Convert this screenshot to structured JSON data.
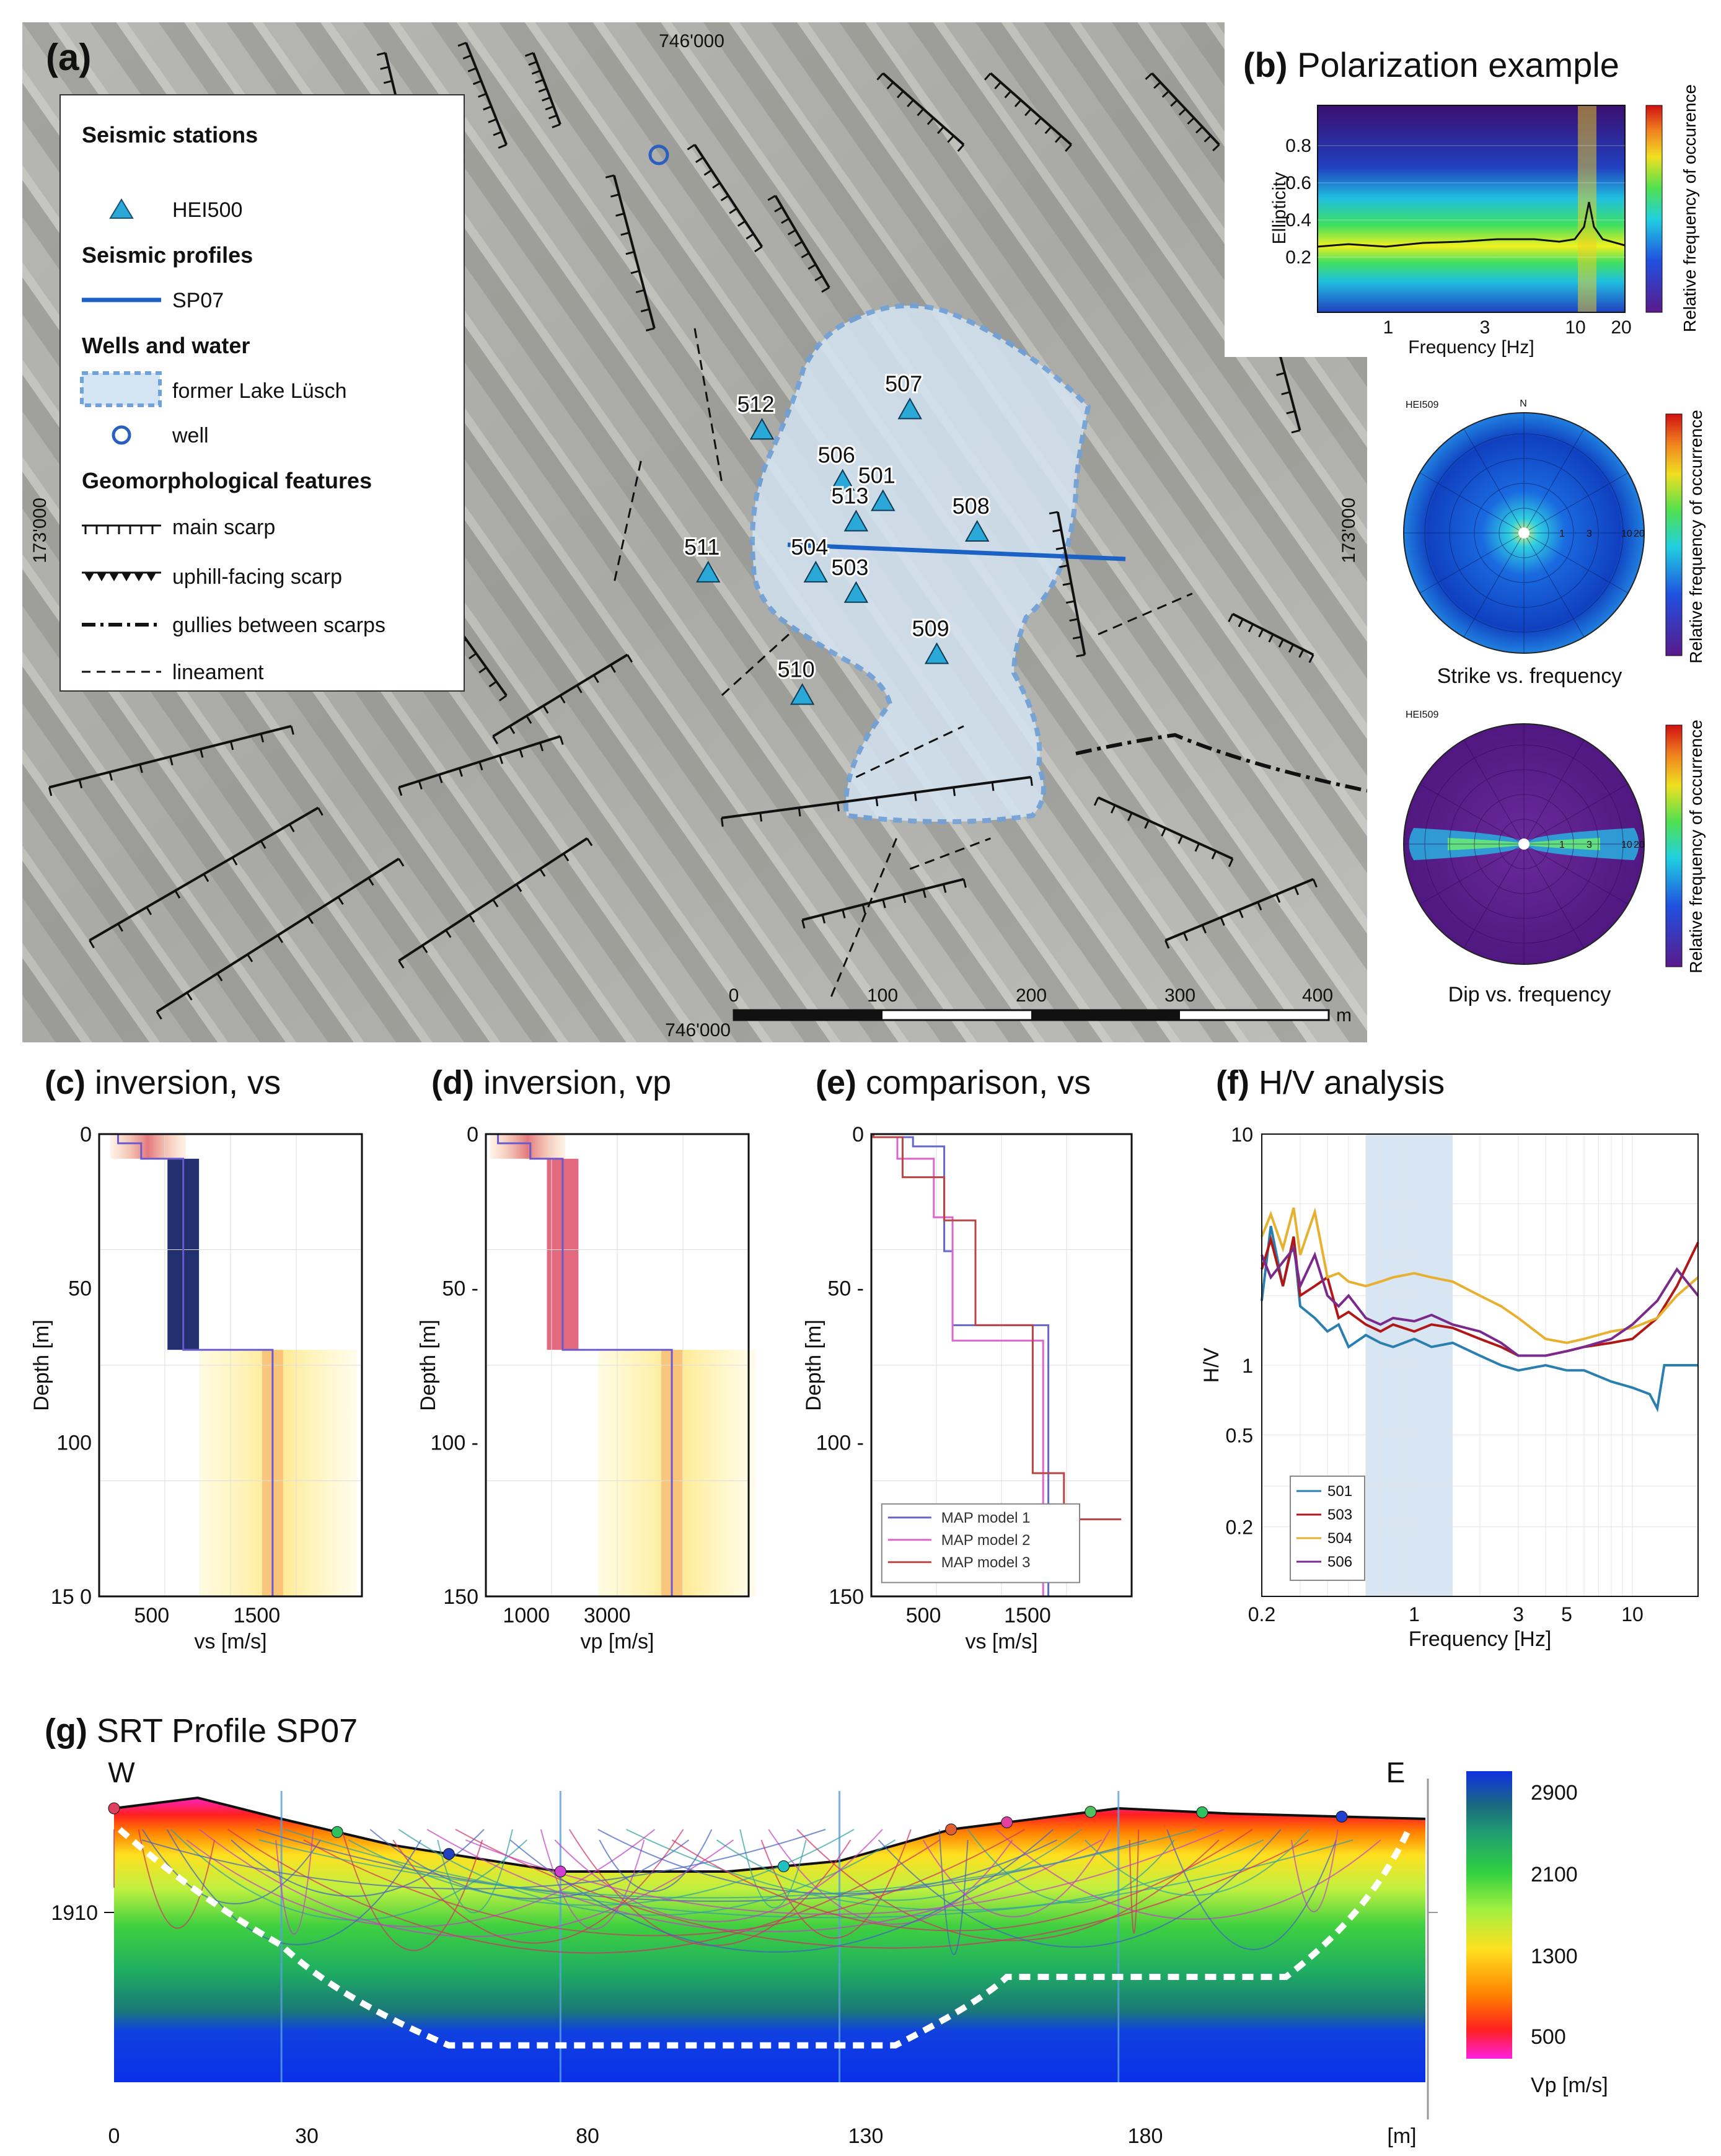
{
  "panels": {
    "a": {
      "tag": "(a)",
      "title": ""
    },
    "b": {
      "tag": "(b)",
      "title": "Polarization example"
    },
    "c": {
      "tag": "(c)",
      "title": "inversion, vs"
    },
    "d": {
      "tag": "(d)",
      "title": "inversion, vp"
    },
    "e": {
      "tag": "(e)",
      "title": "comparison, vs"
    },
    "f": {
      "tag": "(f)",
      "title": "H/V analysis"
    },
    "g": {
      "tag": "(g)",
      "title": "SRT Profile SP07"
    }
  },
  "map": {
    "coord_top": "746'000",
    "coord_bottom": "746'000",
    "coord_left": "173'000",
    "coord_right": "173'000",
    "scale_ticks": [
      "0",
      "100",
      "200",
      "300",
      "400"
    ],
    "scale_unit": "m",
    "legend": {
      "stations_heading": "Seismic stations",
      "station_label": "HEI500",
      "profiles_heading": "Seismic profiles",
      "profile_label": "SP07",
      "water_heading": "Wells and water",
      "lake_label": "former Lake Lüsch",
      "well_label": "well",
      "geomorph_heading": "Geomorphological features",
      "main_scarp": "main scarp",
      "uphill_scarp": "uphill-facing scarp",
      "gullies": "gullies between scarps",
      "lineament": "lineament"
    },
    "stations": [
      {
        "id": "507",
        "mx": 0.66,
        "my": 0.38
      },
      {
        "id": "512",
        "mx": 0.55,
        "my": 0.4
      },
      {
        "id": "506",
        "mx": 0.61,
        "my": 0.45
      },
      {
        "id": "501",
        "mx": 0.64,
        "my": 0.47
      },
      {
        "id": "513",
        "mx": 0.62,
        "my": 0.49
      },
      {
        "id": "508",
        "mx": 0.71,
        "my": 0.5
      },
      {
        "id": "511",
        "mx": 0.51,
        "my": 0.54
      },
      {
        "id": "504",
        "mx": 0.59,
        "my": 0.54
      },
      {
        "id": "503",
        "mx": 0.62,
        "my": 0.56
      },
      {
        "id": "509",
        "mx": 0.68,
        "my": 0.62
      },
      {
        "id": "510",
        "mx": 0.58,
        "my": 0.66
      }
    ]
  },
  "polarization": {
    "ylabel": "Ellipticity",
    "xlabel": "Frequency [Hz]",
    "yticks": [
      "0.2",
      "0.4",
      "0.6",
      "0.8"
    ],
    "xticks": [
      "1",
      "3",
      "10",
      "20"
    ],
    "colorbar_label": "Relative frequency of occurence",
    "station": "HEI509",
    "north": "N",
    "strike_caption": "Strike vs. frequency",
    "dip_caption": "Dip vs. frequency",
    "polar_ticks": [
      "1",
      "3",
      "10",
      "20"
    ],
    "polar_colorbar_label": "Relative frequency of occurrence"
  },
  "chart_data": [
    {
      "id": "c",
      "type": "line",
      "xlabel": "vs [m/s]",
      "ylabel": "Depth [m]",
      "xticks": [
        "500",
        "1500"
      ],
      "yticks": [
        "0",
        "50",
        "100",
        "15 0"
      ],
      "xlim": [
        0,
        2500
      ],
      "ylim": [
        0,
        150
      ],
      "series": [
        {
          "x": [
            180,
            180,
            400,
            400,
            800,
            800,
            1650,
            1650
          ],
          "y": [
            0,
            3,
            3,
            8,
            8,
            70,
            70,
            150
          ]
        }
      ]
    },
    {
      "id": "d",
      "type": "line",
      "xlabel": "vp [m/s]",
      "ylabel": "Depth [m]",
      "xticks": [
        "1000",
        "3000"
      ],
      "yticks": [
        "0",
        "50 -",
        "100 -",
        "150"
      ],
      "xlim": [
        0,
        6500
      ],
      "ylim": [
        0,
        150
      ],
      "series": [
        {
          "x": [
            300,
            300,
            1100,
            1100,
            1900,
            1900,
            4600,
            4600
          ],
          "y": [
            0,
            3,
            3,
            8,
            8,
            70,
            70,
            150
          ]
        }
      ]
    },
    {
      "id": "e",
      "type": "line",
      "xlabel": "vs [m/s]",
      "ylabel": "Depth [m]",
      "xticks": [
        "500",
        "1500"
      ],
      "yticks": [
        "0",
        "50 -",
        "100 -",
        "150"
      ],
      "xlim": [
        0,
        2500
      ],
      "ylim": [
        0,
        150
      ],
      "series": [
        {
          "name": "MAP model 1",
          "color": "#6666cc",
          "x": [
            20,
            20,
            400,
            400,
            700,
            700,
            780,
            780,
            1700,
            1700
          ],
          "y": [
            0,
            1,
            1,
            4,
            4,
            38,
            38,
            62,
            62,
            150
          ]
        },
        {
          "name": "MAP model 2",
          "color": "#dd66cc",
          "x": [
            20,
            20,
            250,
            250,
            600,
            600,
            780,
            780,
            1650,
            1650
          ],
          "y": [
            0,
            1,
            1,
            8,
            8,
            27,
            27,
            67,
            67,
            150
          ]
        },
        {
          "name": "MAP model 3",
          "color": "#bb4444",
          "x": [
            20,
            20,
            300,
            300,
            700,
            700,
            1000,
            1000,
            1550,
            1550,
            1850,
            1850,
            2400
          ],
          "y": [
            0,
            1,
            1,
            14,
            14,
            28,
            28,
            62,
            62,
            110,
            110,
            125,
            125
          ]
        }
      ]
    },
    {
      "id": "f",
      "type": "line",
      "xlabel": "Frequency [Hz]",
      "ylabel": "H/V",
      "xticks": [
        "0.2",
        "1",
        "3",
        "5",
        "10"
      ],
      "yticks": [
        "10",
        "1",
        "0.5",
        "0.2"
      ],
      "xlim": [
        0.2,
        20
      ],
      "ylim": [
        0.1,
        10
      ],
      "xscale": "log",
      "yscale": "log",
      "shaded_band": [
        0.6,
        1.5
      ],
      "series": [
        {
          "name": "501",
          "color": "#2a7fb0",
          "x": [
            0.2,
            0.22,
            0.25,
            0.28,
            0.3,
            0.35,
            0.4,
            0.45,
            0.5,
            0.6,
            0.7,
            0.8,
            1.0,
            1.2,
            1.5,
            2.0,
            2.5,
            3.0,
            4.0,
            5.0,
            6.0,
            8.0,
            10.0,
            12.0,
            13.0,
            14.0,
            17.0,
            20.0
          ],
          "y": [
            1.9,
            4.0,
            2.2,
            3.5,
            1.8,
            1.6,
            1.4,
            1.5,
            1.2,
            1.35,
            1.25,
            1.2,
            1.3,
            1.2,
            1.25,
            1.1,
            1.0,
            0.95,
            1.0,
            0.95,
            0.95,
            0.85,
            0.8,
            0.75,
            0.65,
            1.0,
            1.0,
            1.0
          ]
        },
        {
          "name": "503",
          "color": "#b01818",
          "x": [
            0.2,
            0.22,
            0.25,
            0.28,
            0.3,
            0.35,
            0.4,
            0.45,
            0.5,
            0.6,
            0.7,
            0.8,
            1.0,
            1.2,
            1.5,
            2.0,
            2.5,
            3.0,
            4.0,
            5.0,
            6.0,
            8.0,
            10.0,
            13.0,
            16.0,
            20.0
          ],
          "y": [
            2.6,
            3.5,
            2.2,
            3.6,
            2.0,
            2.2,
            2.4,
            1.6,
            1.7,
            1.5,
            1.4,
            1.5,
            1.4,
            1.5,
            1.45,
            1.3,
            1.2,
            1.1,
            1.1,
            1.15,
            1.2,
            1.25,
            1.3,
            1.6,
            2.2,
            3.4
          ]
        },
        {
          "name": "504",
          "color": "#e8b030",
          "x": [
            0.2,
            0.22,
            0.25,
            0.28,
            0.3,
            0.35,
            0.4,
            0.45,
            0.5,
            0.6,
            0.7,
            0.8,
            1.0,
            1.2,
            1.5,
            2.0,
            2.5,
            3.0,
            4.0,
            5.0,
            6.0,
            8.0,
            10.0,
            13.0,
            16.0,
            20.0
          ],
          "y": [
            3.6,
            4.5,
            3.2,
            4.8,
            3.0,
            4.6,
            2.4,
            2.5,
            2.3,
            2.2,
            2.3,
            2.4,
            2.5,
            2.4,
            2.3,
            2.0,
            1.8,
            1.6,
            1.3,
            1.25,
            1.3,
            1.4,
            1.45,
            1.6,
            2.0,
            2.4
          ]
        },
        {
          "name": "506",
          "color": "#7a2a8a",
          "x": [
            0.2,
            0.22,
            0.25,
            0.28,
            0.3,
            0.35,
            0.4,
            0.45,
            0.5,
            0.6,
            0.7,
            0.8,
            1.0,
            1.2,
            1.5,
            2.0,
            2.5,
            3.0,
            4.0,
            5.0,
            6.0,
            8.0,
            10.0,
            13.0,
            16.0,
            20.0
          ],
          "y": [
            3.0,
            2.4,
            2.8,
            3.2,
            2.2,
            3.0,
            2.0,
            1.8,
            2.0,
            1.6,
            1.5,
            1.6,
            1.55,
            1.65,
            1.5,
            1.4,
            1.25,
            1.1,
            1.1,
            1.15,
            1.2,
            1.3,
            1.5,
            1.9,
            2.6,
            2.0
          ]
        }
      ]
    },
    {
      "id": "g",
      "type": "area",
      "dir_left": "W",
      "dir_right": "E",
      "ytick": "1910",
      "xticks": [
        "0",
        "30",
        "80",
        "130",
        "180",
        "[m]"
      ],
      "colorbar_ticks": [
        "2900",
        "2100",
        "1300",
        "500"
      ],
      "colorbar_label": "Vp [m/s]",
      "x": [
        0,
        15,
        30,
        50,
        80,
        110,
        130,
        150,
        180,
        200,
        235
      ],
      "surface": [
        1932,
        1934,
        1930,
        1925,
        1920,
        1920,
        1922,
        1928,
        1932,
        1931,
        1930
      ]
    }
  ]
}
